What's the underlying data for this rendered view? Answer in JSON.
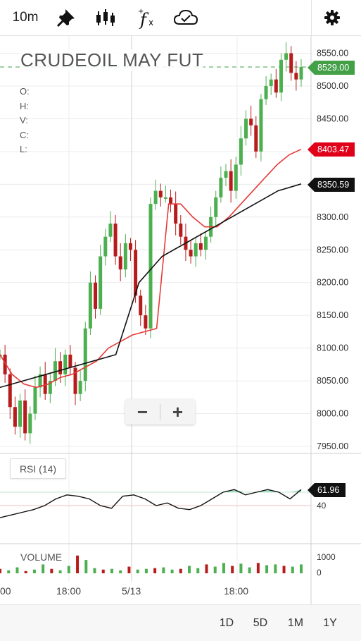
{
  "toolbar": {
    "interval": "10m",
    "icons": [
      "pin-icon",
      "candlestick-icon",
      "indicator-fx-icon",
      "cloud-check-icon",
      "settings-gear-icon"
    ]
  },
  "chart": {
    "title": "CRUDEOIL MAY FUT",
    "ohlc_labels": [
      "O:",
      "H:",
      "V:",
      "C:",
      "L:"
    ],
    "last_price": "8529.00",
    "ma_red_value": "8403.47",
    "ma_black_value": "8350.59",
    "rsi_label": "RSI (14)",
    "rsi_value": "61.96",
    "volume_label": "VOLUME",
    "zoom_out": "−",
    "zoom_in": "+",
    "colors": {
      "up": "#4caf50",
      "down": "#b71c1c",
      "last_tag": "#43a047",
      "ma_red": "#e53935",
      "ma_black": "#111111",
      "rsi_fill": "#a5dfc1"
    }
  },
  "ranges": [
    "1D",
    "5D",
    "1M",
    "1Y"
  ],
  "chart_data": {
    "type": "candlestick",
    "price_axis": {
      "ticks": [
        "8550.00",
        "8500.00",
        "8450.00",
        "8400.00",
        "8350.00",
        "8300.00",
        "8250.00",
        "8200.00",
        "8150.00",
        "8100.00",
        "8050.00",
        "8000.00",
        "7950.00"
      ],
      "ylim": [
        7930,
        8570
      ]
    },
    "rsi_axis": {
      "ticks": [
        "40"
      ]
    },
    "volume_axis": {
      "ticks": [
        "1000",
        "0"
      ]
    },
    "time_ticks": [
      "00",
      "18:00",
      "5/13",
      "18:00"
    ],
    "close_path": [
      8090,
      8060,
      8010,
      7980,
      8020,
      7970,
      8000,
      8040,
      8060,
      8030,
      8050,
      8080,
      8060,
      8090,
      8070,
      8030,
      8050,
      8130,
      8200,
      8160,
      8240,
      8270,
      8290,
      8240,
      8220,
      8260,
      8250,
      8180,
      8150,
      8130,
      8320,
      8340,
      8330,
      8330,
      8320,
      8290,
      8270,
      8250,
      8240,
      8260,
      8250,
      8270,
      8300,
      8330,
      8360,
      8370,
      8340,
      8380,
      8420,
      8450,
      8440,
      8400,
      8480,
      8500,
      8510,
      8490,
      8540,
      8550,
      8520,
      8510,
      8529
    ],
    "ma_red": [
      8090,
      8060,
      8045,
      8040,
      8045,
      8055,
      8060,
      8070,
      8080,
      8100,
      8110,
      8120,
      8125,
      8130,
      8320,
      8320,
      8300,
      8285,
      8285,
      8300,
      8320,
      8340,
      8360,
      8380,
      8395,
      8403.47
    ],
    "ma_black": [
      8040,
      8050,
      8060,
      8070,
      8080,
      8090,
      8200,
      8240,
      8260,
      8280,
      8300,
      8320,
      8340,
      8350.59
    ],
    "rsi": [
      41,
      43,
      45,
      47,
      50,
      55,
      58,
      57,
      55,
      50,
      48,
      57,
      58,
      55,
      50,
      52,
      48,
      47,
      50,
      55,
      60,
      62,
      58,
      60,
      62,
      60,
      55,
      61.96
    ],
    "volume": [
      300,
      200,
      400,
      150,
      250,
      600,
      300,
      200,
      500,
      1200,
      900,
      350,
      250,
      300,
      200,
      450,
      250,
      300,
      350,
      400,
      250,
      300,
      500,
      350,
      600,
      450,
      700,
      500,
      650,
      400,
      700,
      550,
      600,
      500,
      450,
      600
    ]
  }
}
